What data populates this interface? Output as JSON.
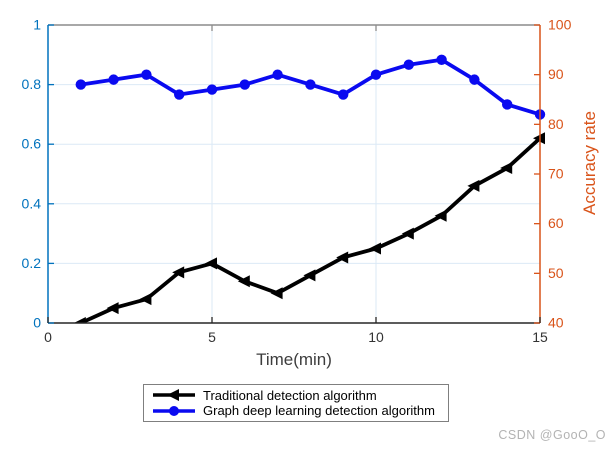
{
  "figure": {
    "watermark": "CSDN @GooO_O"
  },
  "chart_data": {
    "type": "line",
    "title": "",
    "xlabel": "Time(min)",
    "x": [
      1,
      2,
      3,
      4,
      5,
      6,
      7,
      8,
      9,
      10,
      11,
      12,
      13,
      14,
      15
    ],
    "xlim": [
      0,
      15
    ],
    "x_ticks": [
      0,
      5,
      10,
      15
    ],
    "grid": true,
    "legend_position": "below",
    "left_axis": {
      "label": "",
      "lim": [
        0,
        1
      ],
      "ticks": [
        0,
        0.2,
        0.4,
        0.6,
        0.8,
        1
      ],
      "color": "#0072BD"
    },
    "right_axis": {
      "label": "Accuracy rate",
      "lim": [
        40,
        100
      ],
      "ticks": [
        40,
        50,
        60,
        70,
        80,
        90,
        100
      ],
      "color": "#D95319"
    },
    "series": [
      {
        "name": "Traditional detection algorithm",
        "axis": "left",
        "color": "#000000",
        "marker": "triangle-left",
        "values": [
          0,
          0.05,
          0.08,
          0.17,
          0.2,
          0.14,
          0.1,
          0.16,
          0.22,
          0.25,
          0.3,
          0.36,
          0.46,
          0.52,
          0.62
        ]
      },
      {
        "name": "Graph deep learning detection algorithm",
        "axis": "right",
        "color": "#0a0af0",
        "marker": "circle",
        "values": [
          88,
          89,
          90,
          86,
          87,
          88,
          90,
          88,
          86,
          90,
          92,
          93,
          89,
          84,
          82
        ]
      }
    ],
    "style": {
      "grid_color": "#dbe9f6",
      "top_border_color": "#8c8c8c",
      "bottom_axis_color": "#262626",
      "x_tick_label_color": "#333333"
    }
  }
}
